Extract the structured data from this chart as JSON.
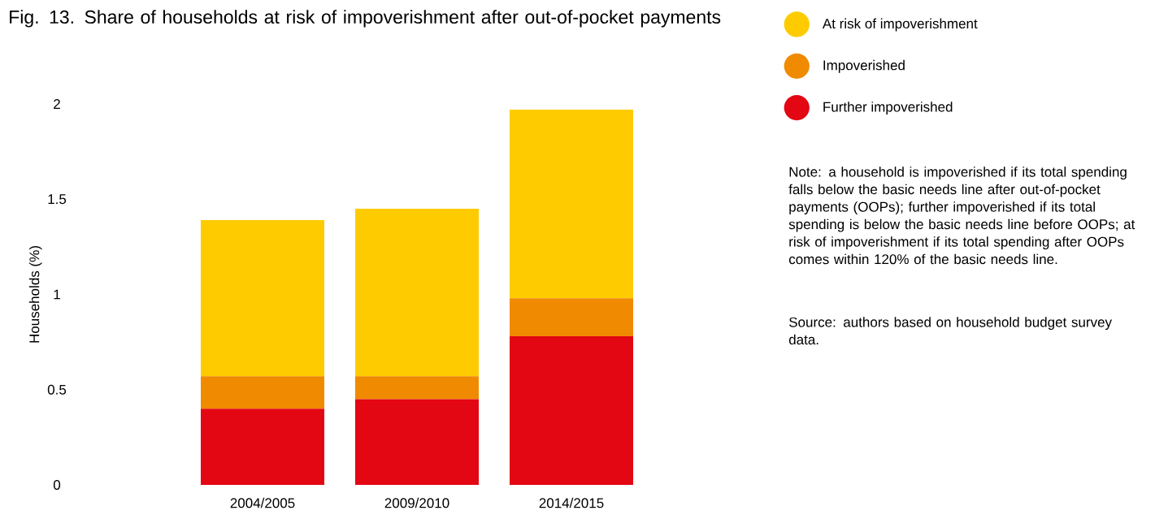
{
  "chart_data": {
    "type": "bar",
    "stacked": true,
    "title": "Fig. 13. Share of households at risk of impoverishment after out-of-pocket payments",
    "ylabel": "Households (%)",
    "categories": [
      "2004/2005",
      "2009/2010",
      "2014/2015"
    ],
    "series": [
      {
        "name": "Further impoverished",
        "color": "#e30613",
        "values": [
          0.4,
          0.45,
          0.78
        ]
      },
      {
        "name": "Impoverished",
        "color": "#f08a00",
        "values": [
          0.17,
          0.12,
          0.2
        ]
      },
      {
        "name": "At risk of impoverishment",
        "color": "#fecb00",
        "values": [
          0.82,
          0.88,
          0.99
        ]
      }
    ],
    "ylim": [
      0,
      2
    ],
    "yticks": [
      0,
      0.5,
      1,
      1.5,
      2
    ],
    "grid": false,
    "legend": "top right",
    "annotations": [
      "Note: a household is impoverished if its total spending falls below the basic needs line after out-of-pocket payments (OOPs); further impoverished if its total spending is below the basic needs line before OOPs; at risk of impoverishment if its total spending after OOPs comes within 120% of the basic needs line.",
      "Source: authors based on household budget survey data."
    ]
  }
}
